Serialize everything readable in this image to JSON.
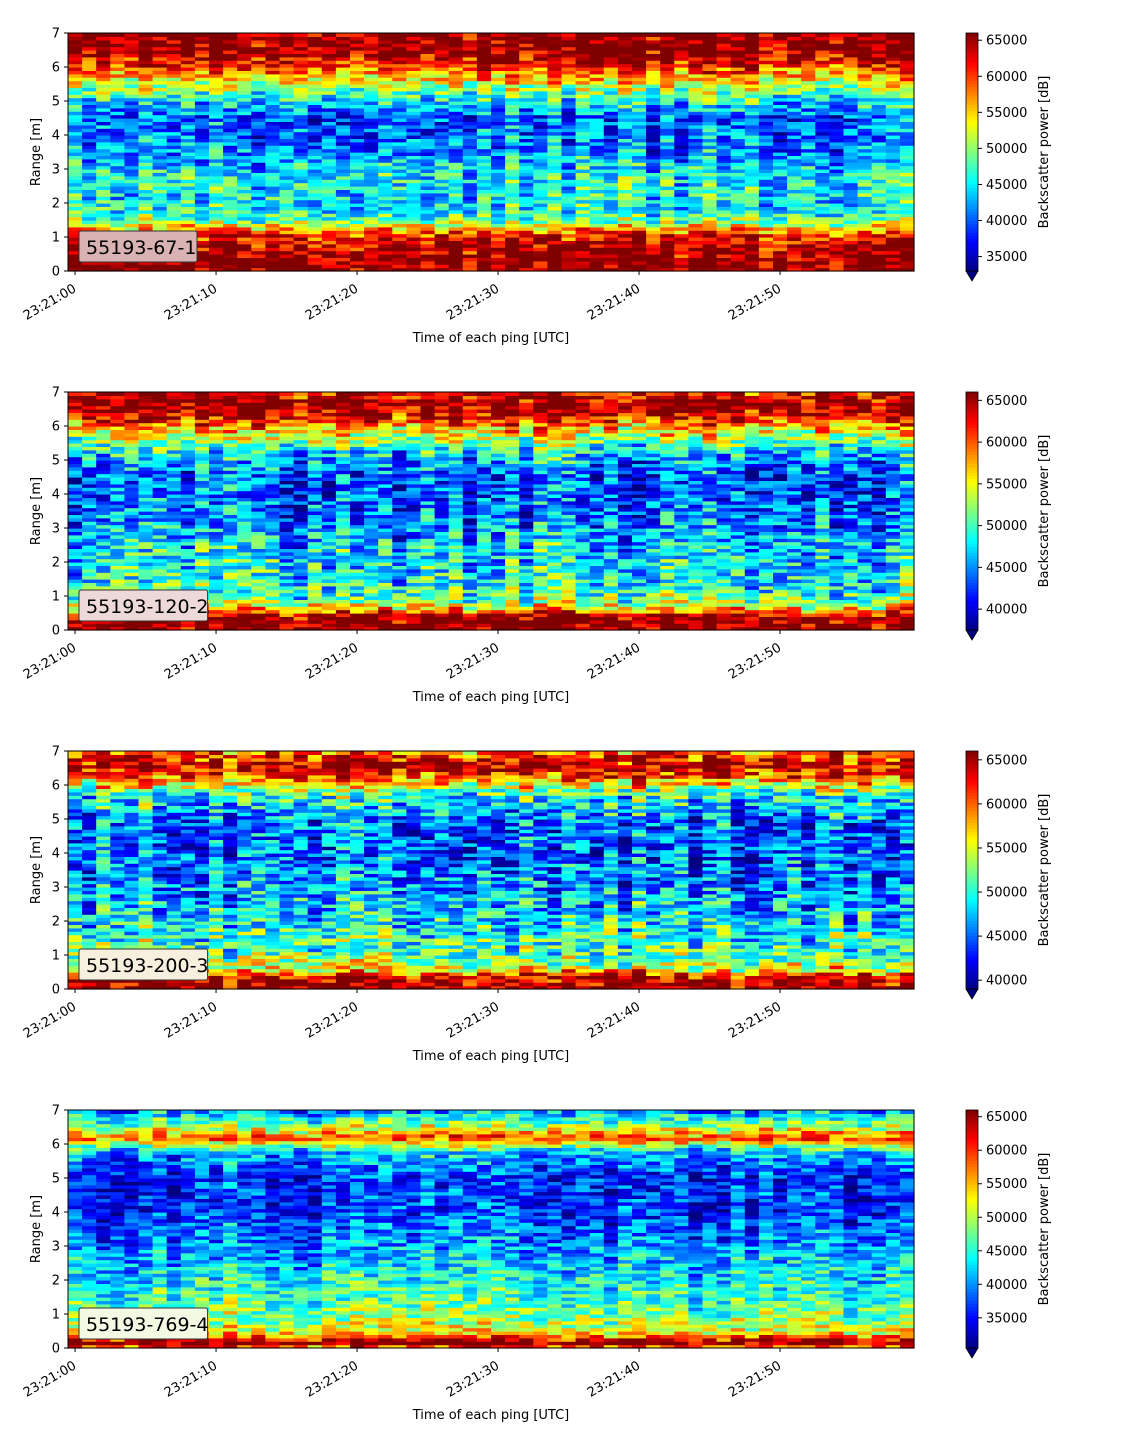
{
  "chart_data": [
    {
      "type": "heatmap",
      "label": "55193-67-1",
      "label_bg": "#d9b3b3",
      "xlabel": "Time of each ping [UTC]",
      "ylabel": "Range [m]",
      "x_range": [
        "23:20:59.5",
        "23:21:59.5"
      ],
      "ylim": [
        0,
        7
      ],
      "x_ticks": [
        "23:21:00",
        "23:21:10",
        "23:21:20",
        "23:21:30",
        "23:21:40",
        "23:21:50"
      ],
      "y_ticks": [
        0,
        1,
        2,
        3,
        4,
        5,
        6,
        7
      ],
      "colorbar": {
        "label": "Backscatter power [dB]",
        "vmin": 33000,
        "vmax": 66000,
        "ticks": [
          35000,
          40000,
          45000,
          50000,
          55000,
          60000,
          65000
        ],
        "extend": "min"
      },
      "intensity_profile": [
        {
          "range": 0.0,
          "value": 66000
        },
        {
          "range": 0.3,
          "value": 66000
        },
        {
          "range": 0.8,
          "value": 64000
        },
        {
          "range": 1.1,
          "value": 61000
        },
        {
          "range": 1.5,
          "value": 49000
        },
        {
          "range": 1.9,
          "value": 45000
        },
        {
          "range": 2.8,
          "value": 46000
        },
        {
          "range": 3.5,
          "value": 42000
        },
        {
          "range": 4.5,
          "value": 40000
        },
        {
          "range": 5.0,
          "value": 45000
        },
        {
          "range": 5.6,
          "value": 54000
        },
        {
          "range": 6.1,
          "value": 62000
        },
        {
          "range": 6.5,
          "value": 66000
        },
        {
          "range": 7.0,
          "value": 66000
        }
      ]
    },
    {
      "type": "heatmap",
      "label": "55193-120-2",
      "label_bg": "#eed9d9",
      "xlabel": "Time of each ping [UTC]",
      "ylabel": "Range [m]",
      "x_range": [
        "23:20:59.5",
        "23:21:59.5"
      ],
      "ylim": [
        0,
        7
      ],
      "x_ticks": [
        "23:21:00",
        "23:21:10",
        "23:21:20",
        "23:21:30",
        "23:21:40",
        "23:21:50"
      ],
      "y_ticks": [
        0,
        1,
        2,
        3,
        4,
        5,
        6,
        7
      ],
      "colorbar": {
        "label": "Backscatter power [dB]",
        "vmin": 37500,
        "vmax": 66000,
        "ticks": [
          40000,
          45000,
          50000,
          55000,
          60000,
          65000
        ],
        "extend": "min"
      },
      "intensity_profile": [
        {
          "range": 0.0,
          "value": 66000
        },
        {
          "range": 0.4,
          "value": 66000
        },
        {
          "range": 0.6,
          "value": 58000
        },
        {
          "range": 0.9,
          "value": 51000
        },
        {
          "range": 1.5,
          "value": 48000
        },
        {
          "range": 2.5,
          "value": 47000
        },
        {
          "range": 3.5,
          "value": 44000
        },
        {
          "range": 4.5,
          "value": 43000
        },
        {
          "range": 5.2,
          "value": 47000
        },
        {
          "range": 5.8,
          "value": 55000
        },
        {
          "range": 6.3,
          "value": 63000
        },
        {
          "range": 6.7,
          "value": 66000
        },
        {
          "range": 7.0,
          "value": 63000
        }
      ]
    },
    {
      "type": "heatmap",
      "label": "55193-200-3",
      "label_bg": "#f7f0df",
      "xlabel": "Time of each ping [UTC]",
      "ylabel": "Range [m]",
      "x_range": [
        "23:20:59.5",
        "23:21:59.5"
      ],
      "ylim": [
        0,
        7
      ],
      "x_ticks": [
        "23:21:00",
        "23:21:10",
        "23:21:20",
        "23:21:30",
        "23:21:40",
        "23:21:50"
      ],
      "y_ticks": [
        0,
        1,
        2,
        3,
        4,
        5,
        6,
        7
      ],
      "colorbar": {
        "label": "Backscatter power [dB]",
        "vmin": 39000,
        "vmax": 66000,
        "ticks": [
          40000,
          45000,
          50000,
          55000,
          60000,
          65000
        ],
        "extend": "min"
      },
      "intensity_profile": [
        {
          "range": 0.0,
          "value": 66000
        },
        {
          "range": 0.3,
          "value": 65000
        },
        {
          "range": 0.6,
          "value": 56000
        },
        {
          "range": 1.0,
          "value": 52000
        },
        {
          "range": 2.0,
          "value": 49000
        },
        {
          "range": 3.0,
          "value": 47000
        },
        {
          "range": 4.0,
          "value": 45000
        },
        {
          "range": 5.0,
          "value": 46000
        },
        {
          "range": 5.7,
          "value": 50000
        },
        {
          "range": 6.2,
          "value": 60000
        },
        {
          "range": 6.6,
          "value": 65000
        },
        {
          "range": 7.0,
          "value": 60000
        }
      ]
    },
    {
      "type": "heatmap",
      "label": "55193-769-4",
      "label_bg": "#f4f9e4",
      "xlabel": "Time of each ping [UTC]",
      "ylabel": "Range [m]",
      "x_range": [
        "23:20:59.5",
        "23:21:59.5"
      ],
      "ylim": [
        0,
        7
      ],
      "x_ticks": [
        "23:21:00",
        "23:21:10",
        "23:21:20",
        "23:21:30",
        "23:21:40",
        "23:21:50"
      ],
      "y_ticks": [
        0,
        1,
        2,
        3,
        4,
        5,
        6,
        7
      ],
      "colorbar": {
        "label": "Backscatter power [dB]",
        "vmin": 30500,
        "vmax": 66000,
        "ticks": [
          35000,
          40000,
          45000,
          50000,
          55000,
          60000,
          65000
        ],
        "extend": "min"
      },
      "intensity_profile": [
        {
          "range": 0.0,
          "value": 55000
        },
        {
          "range": 0.15,
          "value": 66000
        },
        {
          "range": 0.3,
          "value": 60000
        },
        {
          "range": 0.5,
          "value": 52000
        },
        {
          "range": 1.0,
          "value": 48000
        },
        {
          "range": 2.0,
          "value": 44000
        },
        {
          "range": 3.0,
          "value": 40000
        },
        {
          "range": 4.0,
          "value": 37000
        },
        {
          "range": 5.0,
          "value": 36000
        },
        {
          "range": 5.8,
          "value": 42000
        },
        {
          "range": 6.2,
          "value": 60000
        },
        {
          "range": 6.5,
          "value": 50000
        },
        {
          "range": 7.0,
          "value": 40000
        }
      ]
    }
  ]
}
